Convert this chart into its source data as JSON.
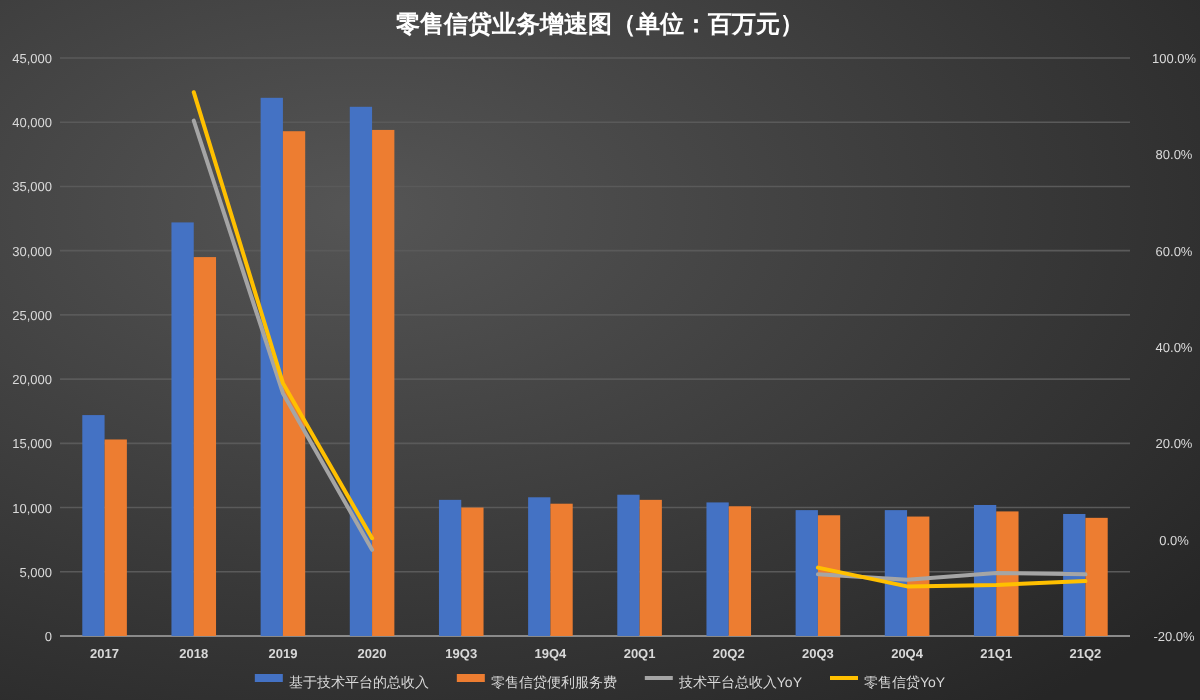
{
  "chart_data": {
    "type": "bar",
    "title": "零售信贷业务增速图（单位：百万元）",
    "categories": [
      "2017",
      "2018",
      "2019",
      "2020",
      "19Q3",
      "19Q4",
      "20Q1",
      "20Q2",
      "20Q3",
      "20Q4",
      "21Q1",
      "21Q2"
    ],
    "series": [
      {
        "name": "基于技术平台的总收入",
        "color": "#4472c4",
        "values": [
          17200,
          32200,
          41900,
          41200,
          10600,
          10800,
          11000,
          10400,
          9800,
          9800,
          10200,
          9500
        ]
      },
      {
        "name": "零售信贷便利服务费",
        "color": "#ed7d31",
        "values": [
          15300,
          29500,
          39300,
          39400,
          10000,
          10300,
          10600,
          10100,
          9400,
          9300,
          9700,
          9200
        ]
      },
      {
        "name": "技术平台总收入YoY",
        "color": "#a5a5a5",
        "type": "line",
        "axis": "y2",
        "values": [
          null,
          87.0,
          30.4,
          -2.1,
          null,
          null,
          null,
          null,
          -7.2,
          -8.3,
          -6.9,
          -7.2
        ]
      },
      {
        "name": "零售信贷YoY",
        "color": "#ffc000",
        "type": "line",
        "axis": "y2",
        "values": [
          null,
          92.9,
          32.5,
          0.3,
          null,
          null,
          null,
          null,
          -5.8,
          -9.7,
          -9.4,
          -8.6
        ]
      }
    ],
    "ylim": [
      0,
      45000
    ],
    "yticks": [
      0,
      {
        "value": 5000,
        "label": "5,000"
      },
      {
        "value": 10000,
        "label": "10,000"
      },
      {
        "value": 15000,
        "label": "15,000"
      },
      {
        "value": 20000,
        "label": "20,000"
      },
      {
        "value": 25000,
        "label": "25,000"
      },
      {
        "value": 30000,
        "label": "30,000"
      },
      {
        "value": 35000,
        "label": "35,000"
      },
      {
        "value": 40000,
        "label": "40,000"
      },
      {
        "value": 45000,
        "label": "45,000"
      }
    ],
    "y2lim": [
      -20,
      100
    ],
    "y2ticks": [
      {
        "value": -20,
        "label": "-20.0%"
      },
      {
        "value": 0,
        "label": "0.0%"
      },
      {
        "value": 20,
        "label": "20.0%"
      },
      {
        "value": 40,
        "label": "40.0%"
      },
      {
        "value": 60,
        "label": "60.0%"
      },
      {
        "value": 80,
        "label": "80.0%"
      },
      {
        "value": 100,
        "label": "100.0%"
      }
    ],
    "grid": "y",
    "legend": "bottom"
  }
}
